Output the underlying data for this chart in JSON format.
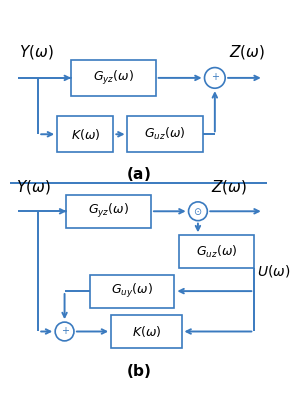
{
  "bg_color": "#ffffff",
  "line_color": "#3a7abf",
  "text_color": "#000000",
  "fig_width": 2.94,
  "fig_height": 4.0,
  "dpi": 100
}
